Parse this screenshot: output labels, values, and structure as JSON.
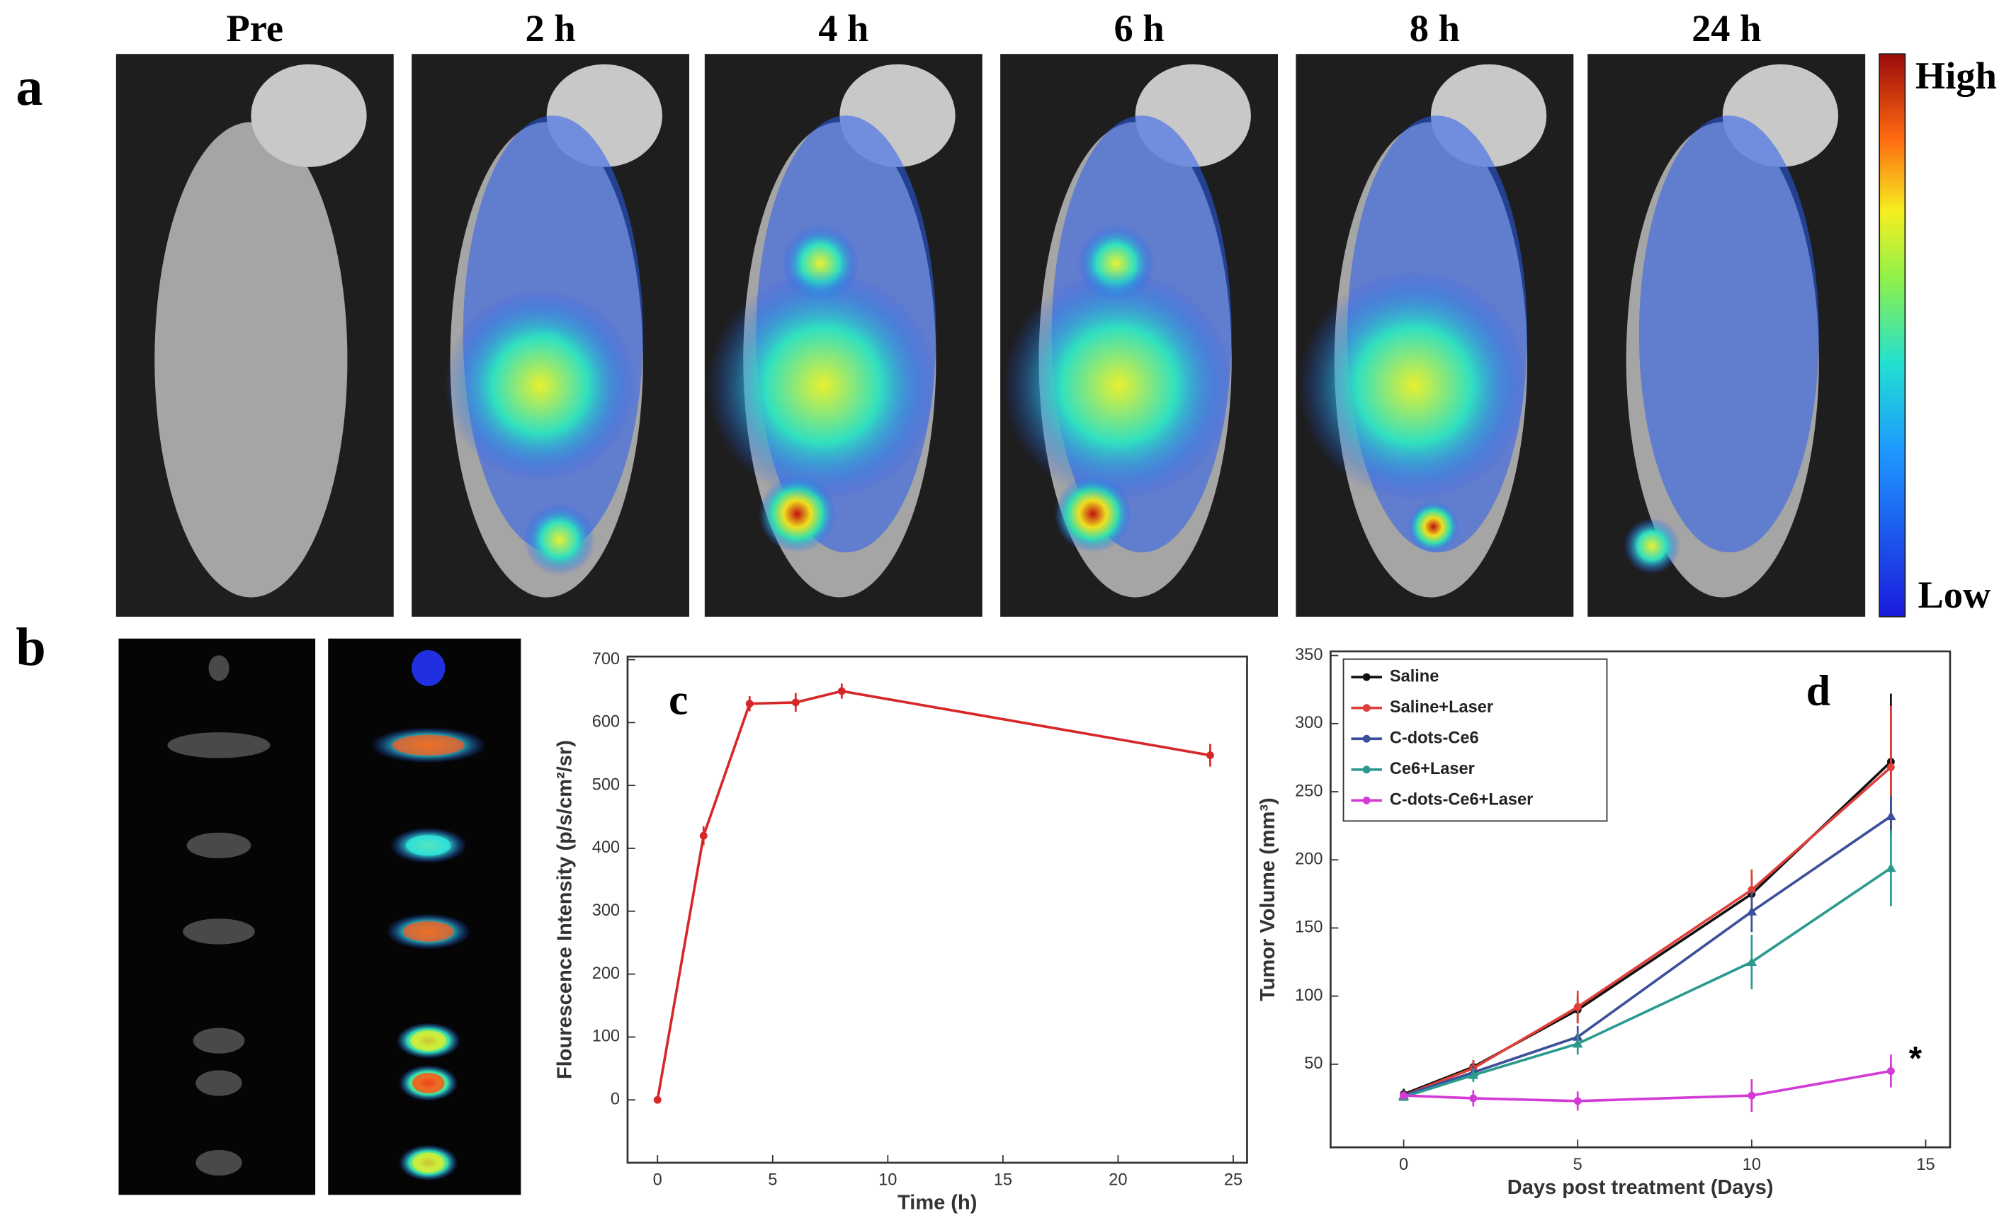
{
  "figure": {
    "panel_labels": [
      "a",
      "b"
    ],
    "time_labels": [
      "Pre",
      "2 h",
      "4 h",
      "6 h",
      "8 h",
      "24 h"
    ],
    "colorbar": {
      "high": "High",
      "low": "Low"
    }
  },
  "chart_data": [
    {
      "type": "line",
      "panel_label": "c",
      "x_label": "Time (h)",
      "y_label": "Flourescence Intensity (p/s/cm²/sr)",
      "x": [
        0,
        2,
        4,
        6,
        8,
        24
      ],
      "series": [
        {
          "color": "#d62728",
          "values": [
            0,
            420,
            630,
            632,
            650,
            548
          ],
          "errors": [
            5,
            15,
            12,
            15,
            12,
            18
          ]
        }
      ],
      "xlim": [
        -1.3,
        25.6
      ],
      "xticks": [
        0,
        5,
        10,
        15,
        20,
        25
      ],
      "ylim": [
        -100,
        705
      ],
      "yticks": [
        0,
        100,
        200,
        300,
        400,
        500,
        600,
        700
      ]
    },
    {
      "type": "line",
      "panel_label": "d",
      "annotation": "*",
      "x_label": "Days post treatment (Days)",
      "y_label": "Tumor Volume (mm³)",
      "x": [
        0,
        2,
        5,
        10,
        14
      ],
      "series": [
        {
          "name": "Saline",
          "color": "#111111",
          "values": [
            28,
            48,
            90,
            175,
            272
          ],
          "errors": [
            4,
            5,
            10,
            12,
            50
          ]
        },
        {
          "name": "Saline+Laser",
          "color": "#e0403a",
          "values": [
            27,
            47,
            92,
            178,
            268
          ],
          "errors": [
            3,
            6,
            12,
            15,
            45
          ]
        },
        {
          "name": "C-dots-Ce6",
          "color": "#3d4f9a",
          "values": [
            27,
            44,
            70,
            162,
            232
          ],
          "errors": [
            3,
            5,
            8,
            15,
            15
          ]
        },
        {
          "name": "Ce6+Laser",
          "color": "#2a9a8e",
          "values": [
            26,
            42,
            65,
            125,
            194
          ],
          "errors": [
            3,
            5,
            8,
            20,
            28
          ]
        },
        {
          "name": "C-dots-Ce6+Laser",
          "color": "#d33ad6",
          "values": [
            27,
            25,
            23,
            27,
            45
          ],
          "errors": [
            3,
            6,
            7,
            12,
            12
          ]
        }
      ],
      "xlim": [
        -2.1,
        15.7
      ],
      "xticks": [
        0,
        5,
        10,
        15
      ],
      "ylim": [
        -11,
        353
      ],
      "yticks": [
        50,
        100,
        150,
        200,
        250,
        300,
        350
      ],
      "legend": "upper-left"
    }
  ]
}
